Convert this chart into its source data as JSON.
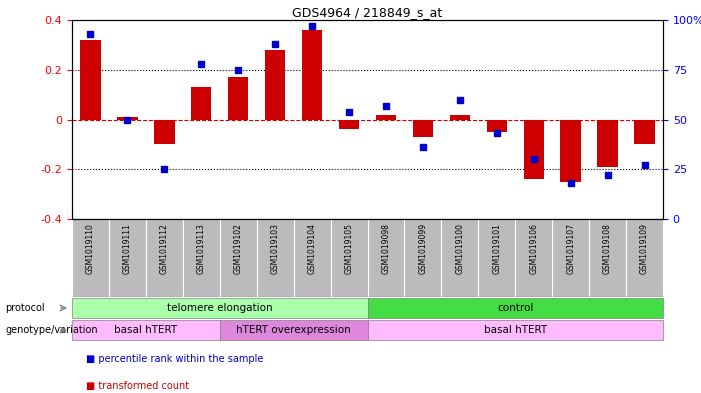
{
  "title": "GDS4964 / 218849_s_at",
  "samples": [
    "GSM1019110",
    "GSM1019111",
    "GSM1019112",
    "GSM1019113",
    "GSM1019102",
    "GSM1019103",
    "GSM1019104",
    "GSM1019105",
    "GSM1019098",
    "GSM1019099",
    "GSM1019100",
    "GSM1019101",
    "GSM1019106",
    "GSM1019107",
    "GSM1019108",
    "GSM1019109"
  ],
  "bar_values": [
    0.32,
    0.01,
    -0.1,
    0.13,
    0.17,
    0.28,
    0.36,
    -0.04,
    0.02,
    -0.07,
    0.02,
    -0.05,
    -0.24,
    -0.25,
    -0.19,
    -0.1
  ],
  "dot_values": [
    93,
    50,
    25,
    78,
    75,
    88,
    97,
    54,
    57,
    36,
    60,
    43,
    30,
    18,
    22,
    27
  ],
  "ylim": [
    -0.4,
    0.4
  ],
  "y2lim": [
    0,
    100
  ],
  "yticks": [
    -0.4,
    -0.2,
    0.0,
    0.2,
    0.4
  ],
  "y2ticks": [
    0,
    25,
    50,
    75,
    100
  ],
  "bar_color": "#cc0000",
  "dot_color": "#0000cc",
  "hline_color": "#cc0000",
  "grid_color": "#000000",
  "protocol_groups": [
    {
      "label": "telomere elongation",
      "start": 0,
      "end": 7,
      "color": "#aaffaa"
    },
    {
      "label": "control",
      "start": 8,
      "end": 15,
      "color": "#44dd44"
    }
  ],
  "genotype_groups": [
    {
      "label": "basal hTERT",
      "start": 0,
      "end": 3,
      "color": "#ffbbff"
    },
    {
      "label": "hTERT overexpression",
      "start": 4,
      "end": 7,
      "color": "#dd88dd"
    },
    {
      "label": "basal hTERT",
      "start": 8,
      "end": 15,
      "color": "#ffbbff"
    }
  ],
  "legend_items": [
    {
      "label": "transformed count",
      "color": "#cc0000"
    },
    {
      "label": "percentile rank within the sample",
      "color": "#0000cc"
    }
  ],
  "xlabel_area_color": "#bbbbbb",
  "protocol_label": "protocol",
  "genotype_label": "genotype/variation"
}
